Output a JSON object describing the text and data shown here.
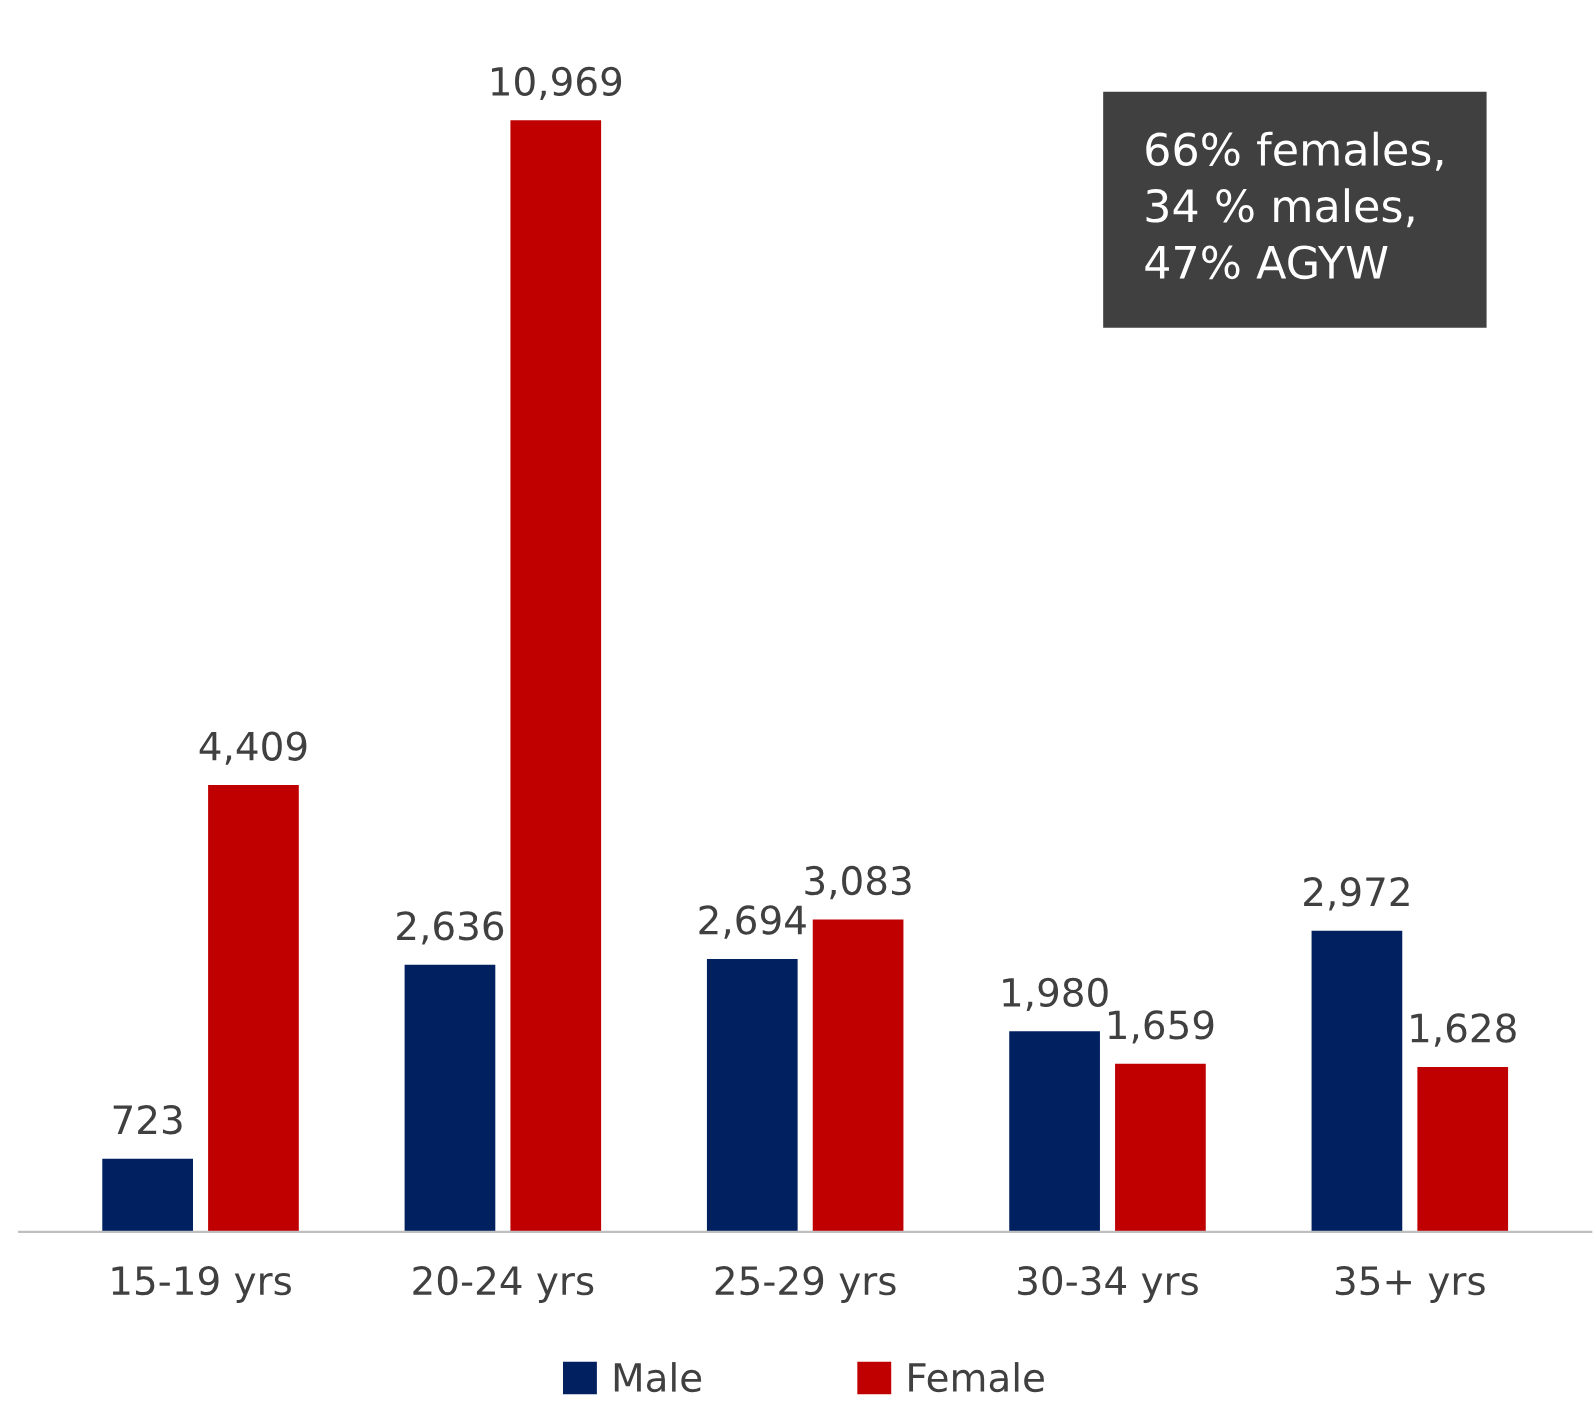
{
  "chart_data": {
    "type": "bar",
    "categories": [
      "15-19 yrs",
      "20-24 yrs",
      "25-29 yrs",
      "30-34 yrs",
      "35+ yrs"
    ],
    "series": [
      {
        "name": "Male",
        "color": "#002060",
        "values": [
          723,
          2636,
          2694,
          1980,
          2972
        ],
        "value_labels": [
          "723",
          "2,636",
          "2,694",
          "1,980",
          "2,972"
        ]
      },
      {
        "name": "Female",
        "color": "#c00000",
        "values": [
          4409,
          10969,
          3083,
          1659,
          1628
        ],
        "value_labels": [
          "4,409",
          "10,969",
          "3,083",
          "1,659",
          "1,628"
        ]
      }
    ],
    "legend": "bottom",
    "tick_labels": "x",
    "grid": false,
    "annotations": [
      "66% females,\n34 % males,\n47% AGYW"
    ]
  }
}
